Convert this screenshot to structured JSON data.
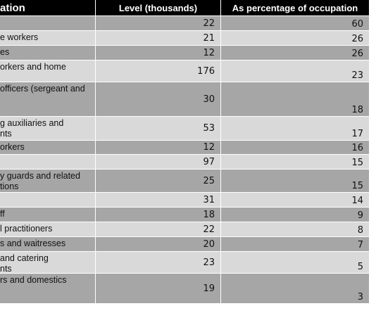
{
  "table": {
    "header": [
      "ation",
      "Level (thousands)",
      "As percentage of occupation"
    ],
    "rows": [
      {
        "level": 22,
        "percentage": 60
      },
      {
        "label": "e workers",
        "level": 21,
        "percentage": 26
      },
      {
        "label": "es",
        "level": 12,
        "percentage": 26
      },
      {
        "label": "orkers and home",
        "level": 176,
        "percentage": 23
      },
      {
        "label": "officers (sergeant and",
        "level": 30,
        "percentage": 18
      },
      {
        "label": "g auxiliaries and\nnts",
        "level": 53,
        "percentage": 17
      },
      {
        "label": "orkers",
        "level": 12,
        "percentage": 16
      },
      {
        "level": 97,
        "percentage": 15
      },
      {
        "label": "y guards and related\ntions",
        "level": 25,
        "percentage": 15
      },
      {
        "level": 31,
        "percentage": 14
      },
      {
        "label": "ff",
        "level": 18,
        "percentage": 9
      },
      {
        "label": "l practitioners",
        "level": 22,
        "percentage": 8
      },
      {
        "label": "s and waitresses",
        "level": 20,
        "percentage": 7
      },
      {
        "label": " and catering\nnts",
        "level": 23,
        "percentage": 5
      },
      {
        "label": "rs and domestics",
        "level": 19,
        "percentage": 3
      }
    ]
  }
}
